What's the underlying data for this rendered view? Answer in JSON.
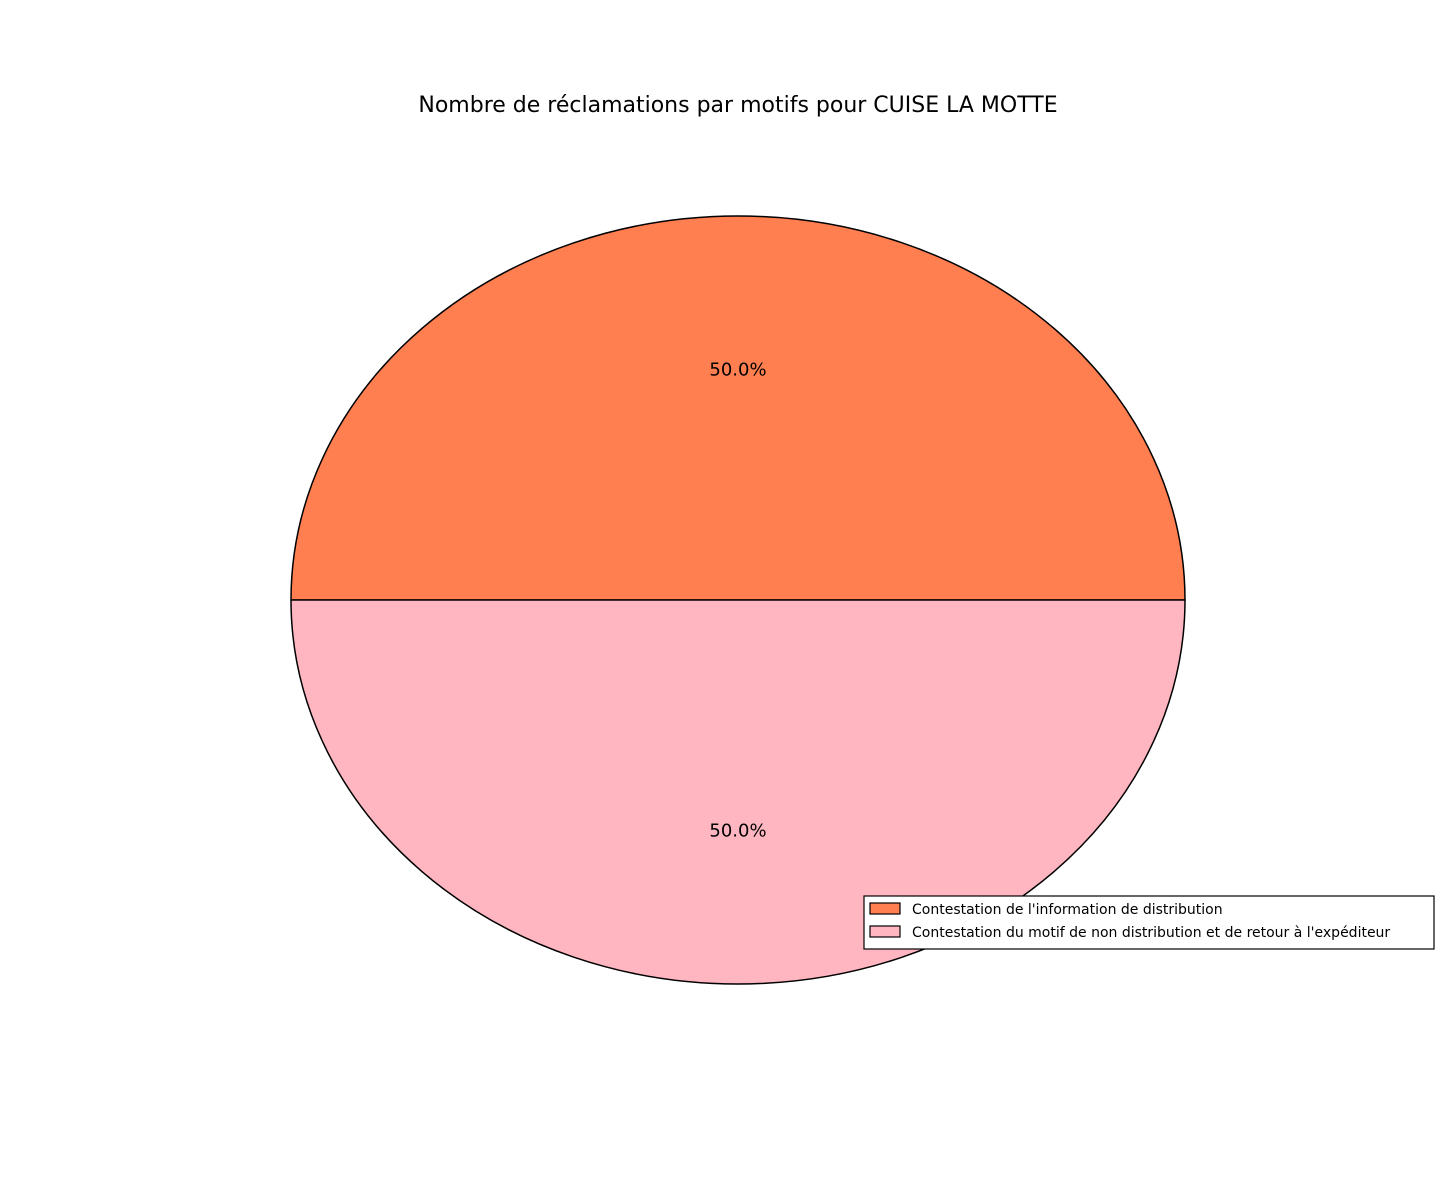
{
  "chart_data": {
    "type": "pie",
    "title": "Nombre de réclamations par motifs pour CUISE LA MOTTE",
    "slices": [
      {
        "label": "Contestation de l'information de distribution",
        "percent": 50.0,
        "percent_label": "50.0%",
        "color": "#FF7F50"
      },
      {
        "label": "Contestation du motif de non distribution et de retour à l'expéditeur",
        "percent": 50.0,
        "percent_label": "50.0%",
        "color": "#FFB6C1"
      }
    ],
    "legend_position": "lower-right",
    "start_angle_deg": 0,
    "direction": "counterclockwise"
  }
}
